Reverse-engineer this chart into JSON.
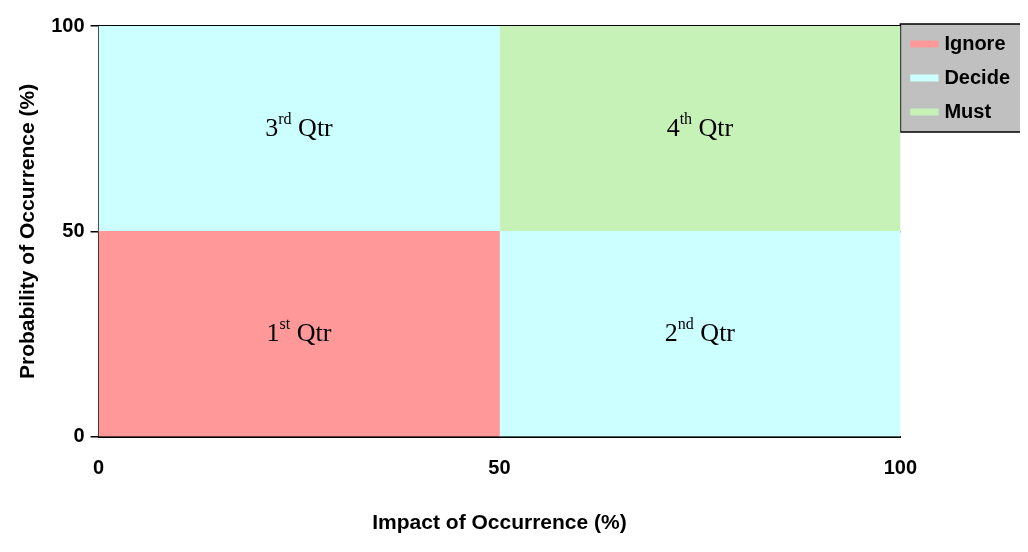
{
  "chart_data": {
    "type": "bar",
    "stacked": true,
    "x": [
      25,
      75
    ],
    "xlim": [
      0,
      100
    ],
    "xticks": [
      0,
      50,
      100
    ],
    "ylim": [
      0,
      100
    ],
    "yticks": [
      0,
      50,
      100
    ],
    "xlabel": "Impact of Occurrence (%)",
    "ylabel": "Probability of Occurrence (%)",
    "grid": "y",
    "legend": "top right",
    "series": [
      {
        "name": "Ignore",
        "color": "#ff9999",
        "values": [
          50,
          null
        ]
      },
      {
        "name": "Decide",
        "color": "#ccffff",
        "values": [
          50,
          50
        ]
      },
      {
        "name": "Must",
        "color": "#c6f2b8",
        "values": [
          null,
          50
        ]
      }
    ],
    "annotations": [
      "3$^{rd}$ Qtr",
      "4$^{th}$ Qtr",
      "1$^{st}$ Qtr",
      "2$^{nd}$ Qtr"
    ]
  }
}
